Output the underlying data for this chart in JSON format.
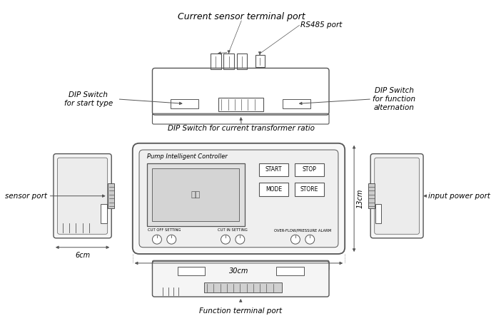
{
  "bg_color": "#ffffff",
  "line_color": "#555555",
  "labels": {
    "current_sensor": "Current sensor terminal port",
    "rs485": "RS485 port",
    "dip_start": "DIP Switch\nfor start type",
    "dip_func": "DIP Switch\nfor function\nalternation",
    "dip_ratio": "DIP Switch for current transformer ratio",
    "sensor_port": "sensor port",
    "input_power": "input power port",
    "pump_ctrl": "Pump Intelligent Controller",
    "display_text": "控空",
    "start_btn": "START",
    "stop_btn": "STOP",
    "mode_btn": "MODE",
    "store_btn": "STORE",
    "cutoff_label": "CUT OFF SETTING",
    "cutin_label": "CUT IN SETTING",
    "alarm_label": "OVER-FLOW/PRESSURE ALARM",
    "width_label": "30cm",
    "height_label": "13cm",
    "side_width_label": "6cm",
    "func_terminal": "Function terminal port"
  },
  "font_sizes": {
    "title": 9,
    "label": 7.5,
    "small": 6,
    "tiny": 5.5,
    "btn": 5.5,
    "dim": 7
  }
}
